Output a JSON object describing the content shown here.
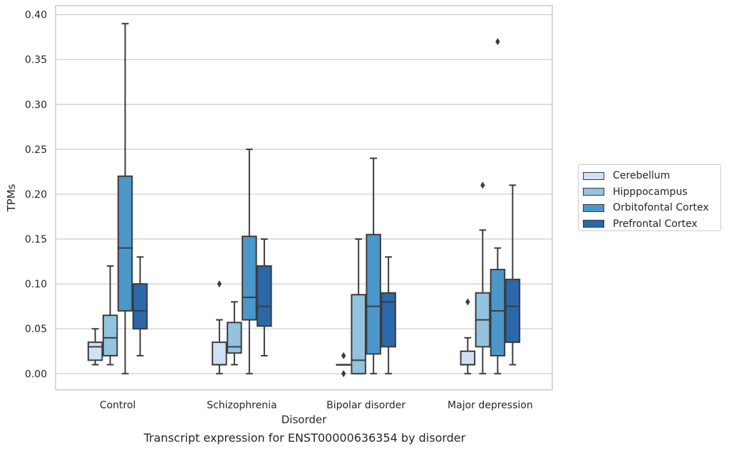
{
  "chart_data": {
    "type": "boxplot",
    "title": "",
    "xlabel": "Disorder",
    "ylabel": "TPMs",
    "ylim": [
      -0.018,
      0.41
    ],
    "yticks": [
      "0.00",
      "0.05",
      "0.10",
      "0.15",
      "0.20",
      "0.25",
      "0.30",
      "0.35",
      "0.40"
    ],
    "categories": [
      "Control",
      "Schizophrenia",
      "Bipolar disorder",
      "Major depression"
    ],
    "grid": "horizontal",
    "legend_position": "right",
    "series": [
      {
        "name": "Cerebellum",
        "color": "#cfe1f2",
        "boxes": [
          {
            "whislo": 0.01,
            "q1": 0.015,
            "med": 0.03,
            "q3": 0.035,
            "whishi": 0.05,
            "fliers": []
          },
          {
            "whislo": 0.0,
            "q1": 0.01,
            "med": 0.01,
            "q3": 0.035,
            "whishi": 0.06,
            "fliers": [
              0.1
            ]
          },
          {
            "whislo": 0.01,
            "q1": 0.01,
            "med": 0.01,
            "q3": 0.01,
            "whishi": 0.01,
            "fliers": [
              0.02,
              0.0
            ]
          },
          {
            "whislo": 0.0,
            "q1": 0.01,
            "med": 0.01,
            "q3": 0.025,
            "whishi": 0.04,
            "fliers": [
              0.08
            ]
          }
        ]
      },
      {
        "name": "Hipppocampus",
        "color": "#93c3df",
        "boxes": [
          {
            "whislo": 0.01,
            "q1": 0.02,
            "med": 0.04,
            "q3": 0.065,
            "whishi": 0.12,
            "fliers": []
          },
          {
            "whislo": 0.01,
            "q1": 0.023,
            "med": 0.03,
            "q3": 0.057,
            "whishi": 0.08,
            "fliers": []
          },
          {
            "whislo": 0.0,
            "q1": 0.0,
            "med": 0.015,
            "q3": 0.088,
            "whishi": 0.15,
            "fliers": []
          },
          {
            "whislo": 0.0,
            "q1": 0.03,
            "med": 0.06,
            "q3": 0.09,
            "whishi": 0.16,
            "fliers": [
              0.21
            ]
          }
        ]
      },
      {
        "name": "Orbitofontal Cortex",
        "color": "#4b97c9",
        "boxes": [
          {
            "whislo": 0.0,
            "q1": 0.07,
            "med": 0.14,
            "q3": 0.22,
            "whishi": 0.39,
            "fliers": []
          },
          {
            "whislo": 0.0,
            "q1": 0.06,
            "med": 0.085,
            "q3": 0.153,
            "whishi": 0.25,
            "fliers": []
          },
          {
            "whislo": 0.0,
            "q1": 0.022,
            "med": 0.075,
            "q3": 0.155,
            "whishi": 0.24,
            "fliers": []
          },
          {
            "whislo": 0.0,
            "q1": 0.02,
            "med": 0.07,
            "q3": 0.116,
            "whishi": 0.14,
            "fliers": [
              0.37
            ]
          }
        ]
      },
      {
        "name": "Prefrontal Cortex",
        "color": "#2a68aa",
        "boxes": [
          {
            "whislo": 0.02,
            "q1": 0.05,
            "med": 0.07,
            "q3": 0.1,
            "whishi": 0.13,
            "fliers": []
          },
          {
            "whislo": 0.02,
            "q1": 0.053,
            "med": 0.075,
            "q3": 0.12,
            "whishi": 0.15,
            "fliers": []
          },
          {
            "whislo": 0.0,
            "q1": 0.03,
            "med": 0.08,
            "q3": 0.09,
            "whishi": 0.13,
            "fliers": []
          },
          {
            "whislo": 0.01,
            "q1": 0.035,
            "med": 0.075,
            "q3": 0.105,
            "whishi": 0.21,
            "fliers": []
          }
        ]
      }
    ]
  },
  "caption": "Transcript expression for ENST00000636354 by disorder"
}
